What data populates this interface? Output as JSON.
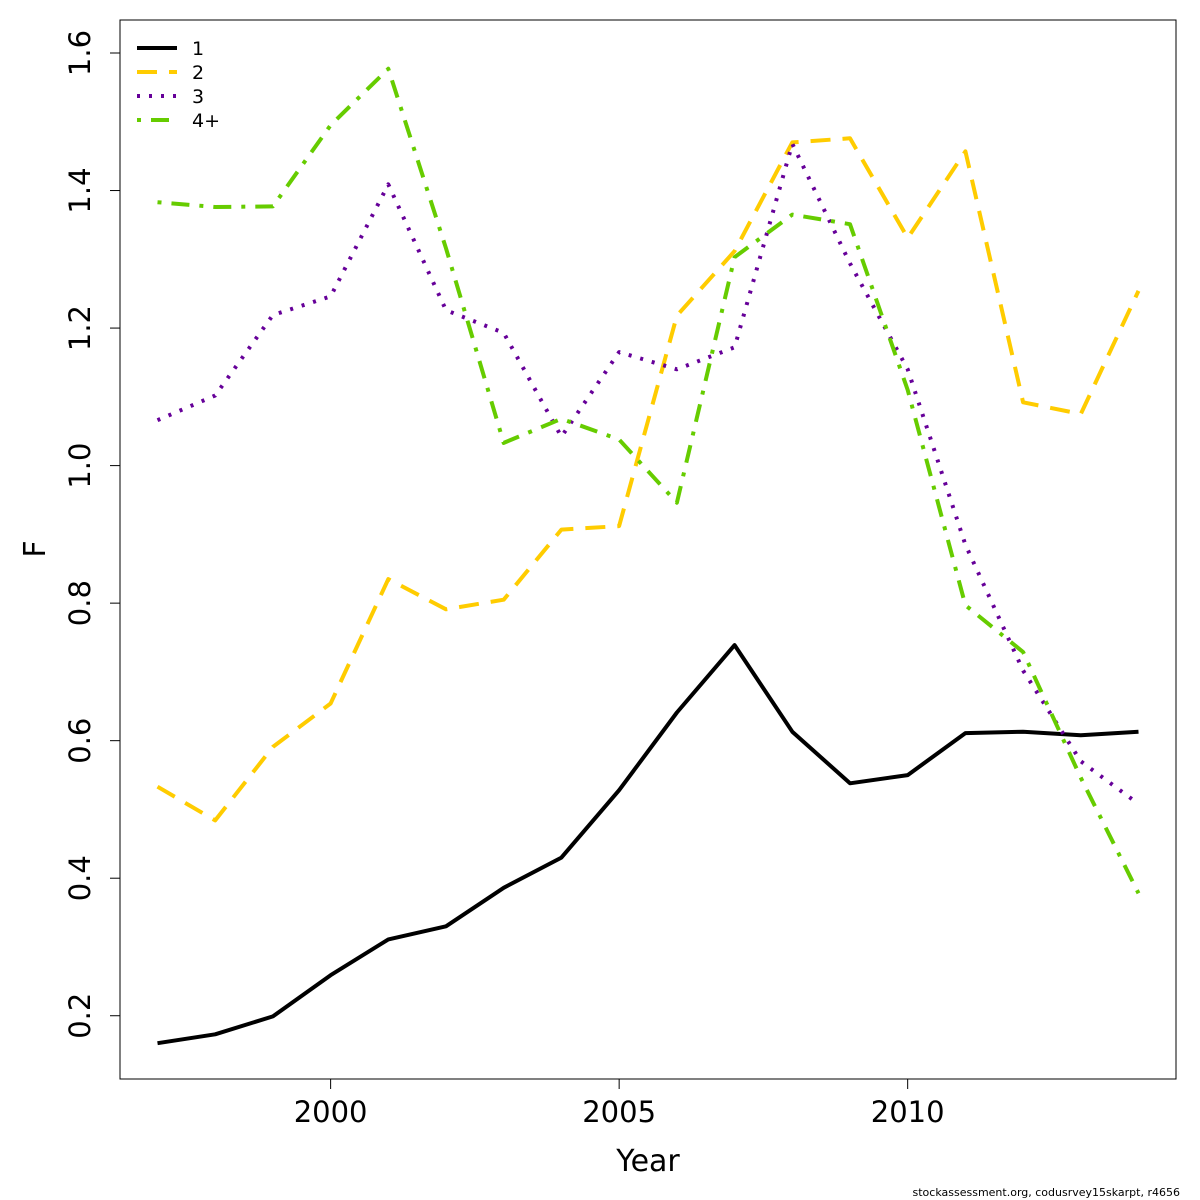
{
  "chart_data": {
    "type": "line",
    "xlabel": "Year",
    "ylabel": "F",
    "xlim": [
      1996.35,
      2014.65
    ],
    "ylim": [
      0.108,
      1.648
    ],
    "x_ticks": [
      2000,
      2005,
      2010
    ],
    "y_ticks": [
      0.2,
      0.4,
      0.6,
      0.8,
      1.0,
      1.2,
      1.4,
      1.6
    ],
    "y_tick_labels": [
      "0.2",
      "0.4",
      "0.6",
      "0.8",
      "1.0",
      "1.2",
      "1.4",
      "1.6"
    ],
    "legend_position": "top-left",
    "x": [
      1997,
      1998,
      1999,
      2000,
      2001,
      2002,
      2003,
      2004,
      2005,
      2006,
      2007,
      2008,
      2009,
      2010,
      2011,
      2012,
      2013,
      2014
    ],
    "series": [
      {
        "name": "1",
        "color": "#000000",
        "dash": "solid",
        "values": [
          0.16,
          0.173,
          0.199,
          0.259,
          0.311,
          0.33,
          0.386,
          0.43,
          0.528,
          0.641,
          0.739,
          0.613,
          0.538,
          0.55,
          0.611,
          0.613,
          0.608,
          0.613
        ]
      },
      {
        "name": "2",
        "color": "#ffcc00",
        "dash": "dashed",
        "values": [
          0.533,
          0.484,
          0.591,
          0.654,
          0.835,
          0.791,
          0.805,
          0.907,
          0.912,
          1.218,
          1.312,
          1.47,
          1.476,
          1.331,
          1.457,
          1.092,
          1.075,
          1.254
        ]
      },
      {
        "name": "3",
        "color": "#660099",
        "dash": "dotted",
        "values": [
          1.066,
          1.102,
          1.219,
          1.246,
          1.409,
          1.226,
          1.193,
          1.042,
          1.165,
          1.14,
          1.172,
          1.468,
          1.294,
          1.14,
          0.885,
          0.702,
          0.57,
          0.508
        ]
      },
      {
        "name": "4+",
        "color": "#66cc00",
        "dash": "dotdash",
        "values": [
          1.383,
          1.376,
          1.377,
          1.495,
          1.577,
          1.316,
          1.033,
          1.068,
          1.038,
          0.946,
          1.303,
          1.365,
          1.351,
          1.11,
          0.797,
          0.729,
          0.546,
          0.378
        ]
      }
    ]
  },
  "credit": "stockassessment.org, codusrvey15skarpt, r4656"
}
